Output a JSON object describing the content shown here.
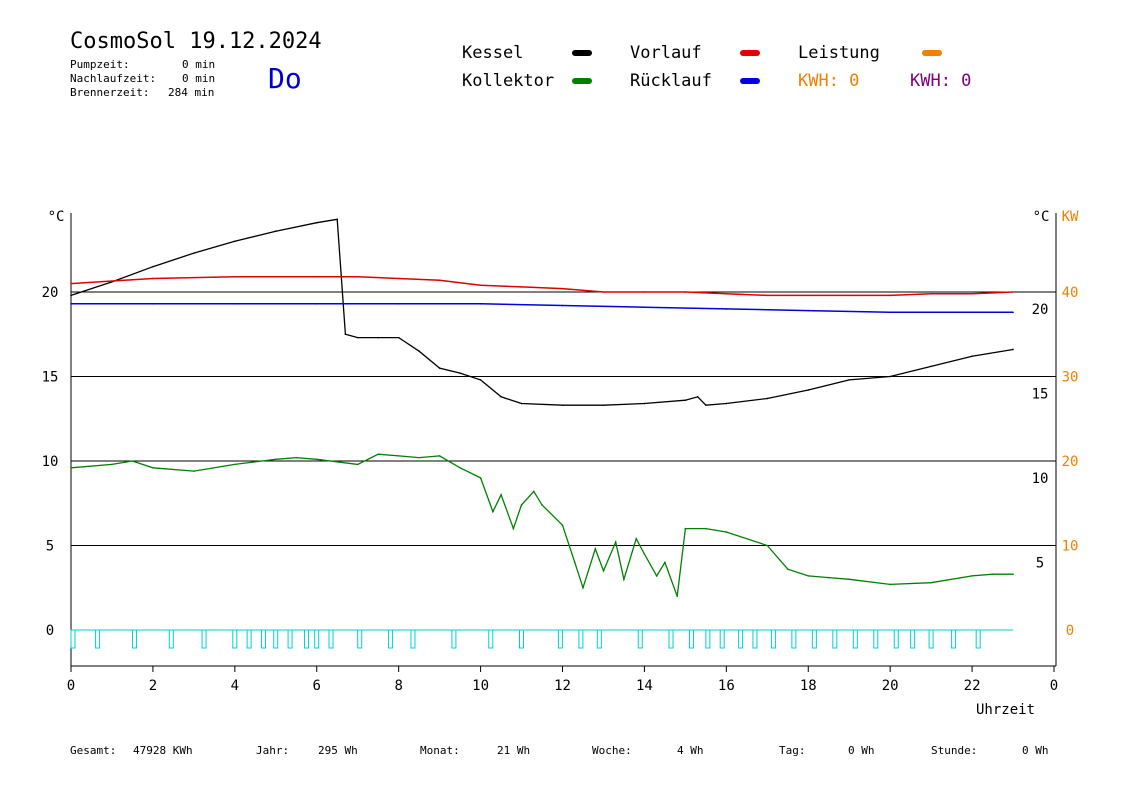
{
  "header": {
    "title": "CosmoSol 19.12.2024",
    "weekday": "Do",
    "stats": [
      {
        "label": "Pumpzeit:",
        "value": "0 min"
      },
      {
        "label": "Nachlaufzeit:",
        "value": "0 min"
      },
      {
        "label": "Brennerzeit:",
        "value": "284 min"
      }
    ]
  },
  "legend": {
    "kessel": {
      "label": "Kessel",
      "color": "#000000"
    },
    "vorlauf": {
      "label": "Vorlauf",
      "color": "#e00000"
    },
    "leistung": {
      "label": "Leistung",
      "color": "#f08000"
    },
    "kollektor": {
      "label": "Kollektor",
      "color": "#008000"
    },
    "ruecklauf": {
      "label": "Rücklauf",
      "color": "#0000e0"
    },
    "kwh1": "KWH: 0",
    "kwh2": "KWH: 0",
    "kwh1_color": "#f08000",
    "kwh2_color": "#800080"
  },
  "footer": [
    {
      "label": "Gesamt:",
      "value": "47928 KWh"
    },
    {
      "label": "Jahr:",
      "value": "295 Wh"
    },
    {
      "label": "Monat:",
      "value": "21 Wh"
    },
    {
      "label": "Woche:",
      "value": "4 Wh"
    },
    {
      "label": "Tag:",
      "value": "0 Wh"
    },
    {
      "label": "Stunde:",
      "value": "0 Wh"
    }
  ],
  "chart_data": {
    "type": "line",
    "xlabel": "Uhrzeit",
    "ylabel_left": "°C",
    "ylabel_right": "°C",
    "ylabel_right2": "KW",
    "xlim": [
      0,
      24
    ],
    "ylim": [
      -1.5,
      25
    ],
    "x_ticks": [
      "0",
      "2",
      "4",
      "6",
      "8",
      "10",
      "12",
      "14",
      "16",
      "18",
      "20",
      "22",
      "0"
    ],
    "y_ticks_left": [
      "0",
      "5",
      "10",
      "15",
      "20"
    ],
    "y_ticks_right": [
      "5",
      "10",
      "15",
      "20"
    ],
    "y_ticks_kw": [
      "0",
      "10",
      "20",
      "30",
      "40"
    ],
    "grid_y": [
      5,
      10,
      15,
      20
    ],
    "series": [
      {
        "name": "Kessel",
        "color": "#000000",
        "x": [
          0,
          1,
          2,
          3,
          4,
          5,
          6,
          6.5,
          6.7,
          7,
          7.5,
          8,
          8.5,
          9,
          9.5,
          10,
          10.5,
          11,
          12,
          13,
          14,
          15,
          15.3,
          15.5,
          16,
          17,
          18,
          19,
          20,
          21,
          22,
          23
        ],
        "y": [
          19.8,
          20.6,
          21.5,
          22.3,
          23.0,
          23.6,
          24.1,
          24.3,
          17.5,
          17.3,
          17.3,
          17.3,
          16.5,
          15.5,
          15.2,
          14.8,
          13.8,
          13.4,
          13.3,
          13.3,
          13.4,
          13.6,
          13.8,
          13.3,
          13.4,
          13.7,
          14.2,
          14.8,
          15.0,
          15.6,
          16.2,
          16.6
        ]
      },
      {
        "name": "Vorlauf",
        "color": "#e00000",
        "x": [
          0,
          2,
          4,
          6,
          7,
          8,
          9,
          10,
          11,
          12,
          13,
          14,
          15,
          16,
          17,
          18,
          19,
          20,
          21,
          22,
          23
        ],
        "y": [
          20.5,
          20.8,
          20.9,
          20.9,
          20.9,
          20.8,
          20.7,
          20.4,
          20.3,
          20.2,
          20.0,
          20.0,
          20.0,
          19.9,
          19.8,
          19.8,
          19.8,
          19.8,
          19.9,
          19.9,
          20.0
        ]
      },
      {
        "name": "Rücklauf",
        "color": "#0000e0",
        "x": [
          0,
          2,
          4,
          6,
          8,
          10,
          12,
          14,
          16,
          18,
          20,
          22,
          23
        ],
        "y": [
          19.3,
          19.3,
          19.3,
          19.3,
          19.3,
          19.3,
          19.2,
          19.1,
          19.0,
          18.9,
          18.8,
          18.8,
          18.8
        ]
      },
      {
        "name": "Kollektor",
        "color": "#008000",
        "x": [
          0,
          1,
          1.5,
          2,
          3,
          4,
          5,
          5.5,
          6,
          7,
          7.5,
          8,
          8.5,
          9,
          9.5,
          10,
          10.3,
          10.5,
          10.8,
          11,
          11.3,
          11.5,
          12,
          12.3,
          12.5,
          12.8,
          13,
          13.3,
          13.5,
          13.8,
          14,
          14.3,
          14.5,
          14.8,
          15,
          15.5,
          16,
          17,
          17.5,
          18,
          18.5,
          19,
          20,
          21,
          22,
          22.5,
          23
        ],
        "y": [
          9.6,
          9.8,
          10.0,
          9.6,
          9.4,
          9.8,
          10.1,
          10.2,
          10.1,
          9.8,
          10.4,
          10.3,
          10.2,
          10.3,
          9.6,
          9.0,
          7.0,
          8.0,
          6.0,
          7.4,
          8.2,
          7.4,
          6.2,
          4.0,
          2.5,
          4.8,
          3.5,
          5.2,
          3.0,
          5.4,
          4.5,
          3.2,
          4.0,
          2.0,
          6.0,
          6.0,
          5.8,
          5.0,
          3.6,
          3.2,
          3.1,
          3.0,
          2.7,
          2.8,
          3.2,
          3.3,
          3.3
        ]
      },
      {
        "name": "Leistung",
        "color": "#f08000",
        "x": [
          0,
          23
        ],
        "y": [
          0,
          0
        ]
      }
    ],
    "pump_pulses_hours": [
      0,
      0.6,
      1.5,
      2.4,
      3.2,
      3.95,
      4.3,
      4.65,
      4.95,
      5.3,
      5.7,
      5.95,
      6.3,
      7.0,
      7.75,
      8.3,
      9.3,
      10.2,
      10.95,
      11.9,
      12.4,
      12.85,
      13.85,
      14.6,
      15.1,
      15.5,
      15.85,
      16.3,
      16.65,
      17.1,
      17.6,
      18.1,
      18.6,
      19.1,
      19.6,
      20.1,
      20.5,
      20.95,
      21.5,
      22.1
    ]
  }
}
